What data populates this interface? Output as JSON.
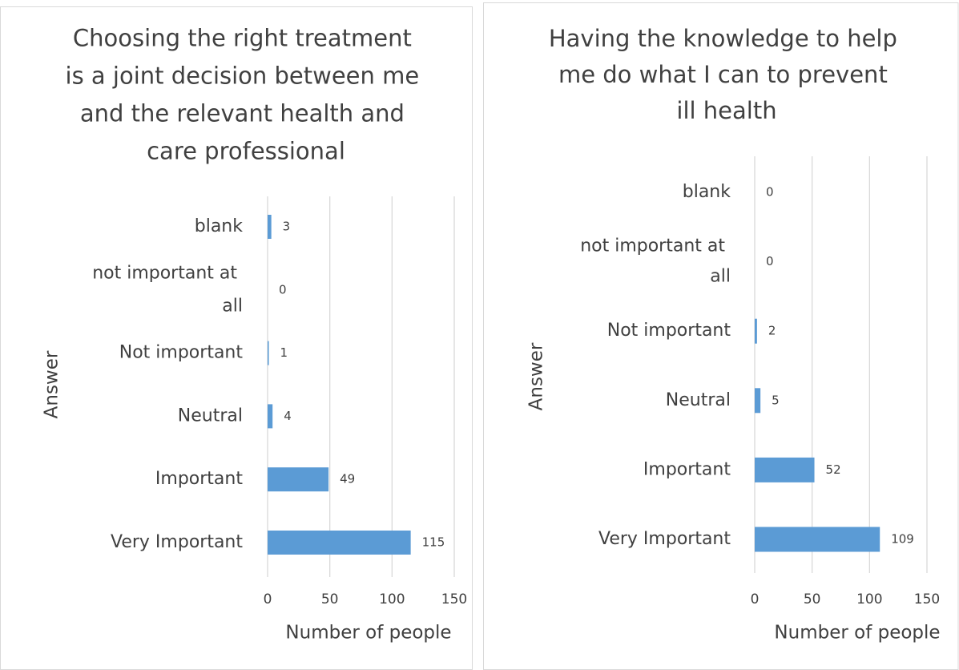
{
  "chart_data": [
    {
      "type": "bar",
      "orientation": "horizontal",
      "title": "Choosing the right treatment is a joint decision between me and the relevant health and care professional",
      "categories": [
        "blank",
        "not important at all",
        "Not important",
        "Neutral",
        "Important",
        "Very Important"
      ],
      "values": [
        3,
        0,
        1,
        4,
        49,
        115
      ],
      "color": "#5b9bd5",
      "xlim": [
        0,
        150
      ],
      "xticks": [
        0,
        50,
        100,
        150
      ],
      "grid": true,
      "xlabel": "Number of people",
      "ylabel": "Answer"
    },
    {
      "type": "bar",
      "orientation": "horizontal",
      "title": "Having the knowledge to help me do what I can to prevent ill health",
      "categories": [
        "blank",
        "not important at all",
        "Not important",
        "Neutral",
        "Important",
        "Very Important"
      ],
      "values": [
        0,
        0,
        2,
        5,
        52,
        109
      ],
      "color": "#5b9bd5",
      "xlim": [
        0,
        150
      ],
      "xticks": [
        0,
        50,
        100,
        150
      ],
      "grid": true,
      "xlabel": "Number of people",
      "ylabel": "Answer"
    }
  ]
}
